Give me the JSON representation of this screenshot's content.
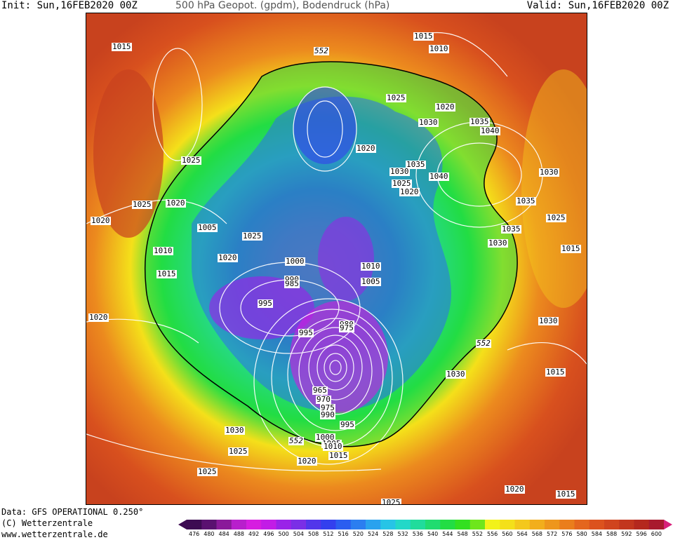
{
  "header": {
    "init": "Init: Sun,16FEB2020 00Z",
    "title": "500 hPa Geopot. (gpdm), Bodendruck (hPa)",
    "valid": "Valid: Sun,16FEB2020 00Z"
  },
  "credits": {
    "data": "Data: GFS OPERATIONAL 0.250°",
    "copyright": "(C) Wetterzentrale",
    "url": "www.wetterzentrale.de"
  },
  "map": {
    "geopotential_contour_labels": [
      "552",
      "552",
      "552"
    ],
    "isobar_labels": [
      "1015",
      "1010",
      "1015",
      "1025",
      "1020",
      "1030",
      "1035",
      "1040",
      "1020",
      "1025",
      "1035",
      "1030",
      "1040",
      "1030",
      "1020",
      "1025",
      "1025",
      "1020",
      "1020",
      "1005",
      "1025",
      "1035",
      "1030",
      "1035",
      "1025",
      "1010",
      "1020",
      "1000",
      "1010",
      "1015",
      "1015",
      "990",
      "985",
      "1005",
      "995",
      "980",
      "975",
      "995",
      "1030",
      "1020",
      "1030",
      "1015",
      "965",
      "970",
      "975",
      "990",
      "995",
      "1030",
      "1000",
      "1005",
      "1025",
      "1010",
      "1015",
      "1025",
      "1020",
      "1020",
      "1015",
      "1025"
    ],
    "colors": {
      "warm_outer": "#c8421e",
      "orange": "#ec8a1e",
      "yellow": "#f4e01a",
      "green": "#22dd44",
      "cyan": "#2ad6d6",
      "blue": "#2b6ef0",
      "violet": "#7a2fe6",
      "magenta": "#d21be0",
      "isobar": "#ffffff"
    }
  },
  "colorbar": {
    "ticks": [
      "476",
      "480",
      "484",
      "488",
      "492",
      "496",
      "500",
      "504",
      "508",
      "512",
      "516",
      "520",
      "524",
      "528",
      "532",
      "536",
      "540",
      "544",
      "548",
      "552",
      "556",
      "560",
      "564",
      "568",
      "572",
      "576",
      "580",
      "584",
      "588",
      "592",
      "596",
      "600"
    ],
    "colors": [
      "#3d0b52",
      "#5a1170",
      "#8a1a9a",
      "#b81fcc",
      "#d61de0",
      "#c21ce6",
      "#9a23e8",
      "#7a2fe6",
      "#5236ea",
      "#3340ee",
      "#2b5ef0",
      "#2b7ef0",
      "#29a2ee",
      "#27c4e6",
      "#23d8c8",
      "#20dc9c",
      "#20dc70",
      "#22dd44",
      "#33e020",
      "#6ee61c",
      "#f2f21a",
      "#f4e01a",
      "#f4c81c",
      "#f2ae1c",
      "#ee961c",
      "#ea7e1c",
      "#e4661e",
      "#dc521e",
      "#d0441e",
      "#c2361e",
      "#b4281e",
      "#a81a2e"
    ]
  }
}
